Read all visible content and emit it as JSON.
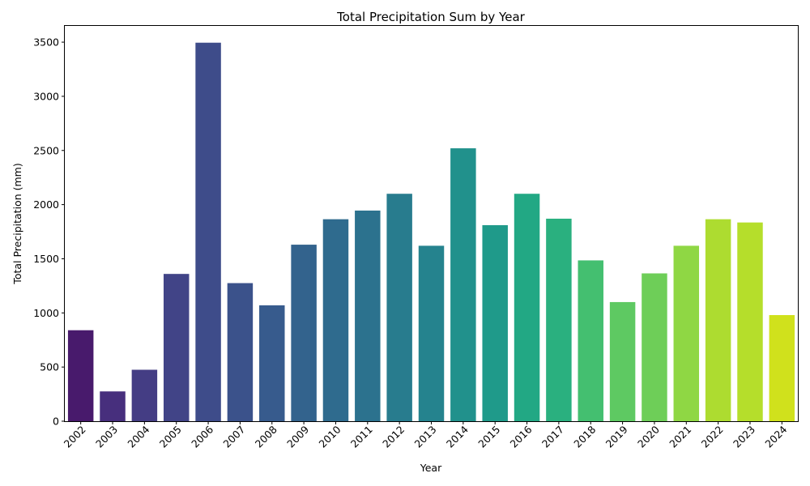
{
  "chart_data": {
    "type": "bar",
    "title": "Total Precipitation Sum by Year",
    "xlabel": "Year",
    "ylabel": "Total Precipitation (mm)",
    "ylim": [
      0,
      3650
    ],
    "yticks": [
      0,
      500,
      1000,
      1500,
      2000,
      2500,
      3000,
      3500
    ],
    "categories": [
      "2002",
      "2003",
      "2004",
      "2005",
      "2006",
      "2007",
      "2008",
      "2009",
      "2010",
      "2011",
      "2012",
      "2013",
      "2014",
      "2015",
      "2016",
      "2017",
      "2018",
      "2019",
      "2020",
      "2021",
      "2022",
      "2023",
      "2024"
    ],
    "values": [
      840,
      275,
      475,
      1360,
      3495,
      1275,
      1070,
      1630,
      1865,
      1945,
      2100,
      1620,
      2520,
      1810,
      2100,
      1870,
      1485,
      1100,
      1365,
      1620,
      1865,
      1835,
      980
    ],
    "colors": [
      "#481a6c",
      "#472f7d",
      "#443d84",
      "#414487",
      "#3e4c8a",
      "#3b528b",
      "#375b8d",
      "#33638d",
      "#2f6b8e",
      "#2c728e",
      "#287c8e",
      "#25838e",
      "#21918c",
      "#1f9a8a",
      "#22a884",
      "#2ab07f",
      "#44bf70",
      "#5ec962",
      "#6ece58",
      "#8fd744",
      "#addc30",
      "#b5de2b",
      "#d0e11c"
    ],
    "grid": false,
    "legend": "none"
  }
}
